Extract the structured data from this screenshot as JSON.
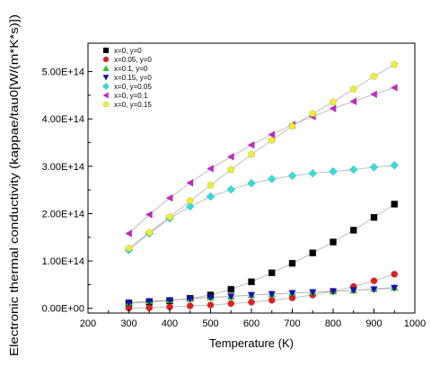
{
  "chart_data": {
    "type": "scatter",
    "title": "",
    "xlabel": "Temperature (K)",
    "ylabel": "Electronic thermal conductivity (kappae/tau0[W/(m*K*s)])",
    "xlim": [
      200,
      1000
    ],
    "ylim": [
      -10000000000000.0,
      560000000000000.0
    ],
    "x_ticks": [
      200,
      300,
      400,
      500,
      600,
      700,
      800,
      900,
      1000
    ],
    "x_tick_labels": [
      "200",
      "300",
      "400",
      "500",
      "600",
      "700",
      "800",
      "900",
      "1000"
    ],
    "y_ticks": [
      0,
      100000000000000.0,
      200000000000000.0,
      300000000000000.0,
      400000000000000.0,
      500000000000000.0
    ],
    "y_tick_labels": [
      "0.00E+00",
      "1.00E+14",
      "2.00E+14",
      "3.00E+14",
      "4.00E+14",
      "5.00E+14"
    ],
    "grid": false,
    "legend_position": "top-left",
    "x": [
      300,
      350,
      400,
      450,
      500,
      550,
      600,
      650,
      700,
      750,
      800,
      850,
      900,
      950
    ],
    "series": [
      {
        "name": "x=0, y=0",
        "color": "#000000",
        "marker": "square",
        "values": [
          10000000000000.0,
          13000000000000.0,
          16000000000000.0,
          21000000000000.0,
          28000000000000.0,
          40000000000000.0,
          56000000000000.0,
          75000000000000.0,
          95000000000000.0,
          117000000000000.0,
          140000000000000.0,
          165000000000000.0,
          192000000000000.0,
          220000000000000.0
        ]
      },
      {
        "name": "x=0.05, y=0",
        "color": "#e02020",
        "marker": "circle",
        "values": [
          0.0,
          1000000000000.0,
          3000000000000.0,
          5000000000000.0,
          7000000000000.0,
          10000000000000.0,
          13000000000000.0,
          17000000000000.0,
          22000000000000.0,
          28000000000000.0,
          36000000000000.0,
          46000000000000.0,
          58000000000000.0,
          72000000000000.0
        ]
      },
      {
        "name": "x=0.1, y=0",
        "color": "#22cc22",
        "marker": "triangle-up",
        "values": [
          12000000000000.0,
          15000000000000.0,
          17000000000000.0,
          20000000000000.0,
          23000000000000.0,
          25000000000000.0,
          28000000000000.0,
          30000000000000.0,
          32000000000000.0,
          34000000000000.0,
          36000000000000.0,
          38000000000000.0,
          41000000000000.0,
          44000000000000.0
        ]
      },
      {
        "name": "x=0.15, y=0",
        "color": "#1010c0",
        "marker": "triangle-down",
        "values": [
          12000000000000.0,
          15000000000000.0,
          17000000000000.0,
          20000000000000.0,
          23000000000000.0,
          25000000000000.0,
          28000000000000.0,
          30000000000000.0,
          32000000000000.0,
          34000000000000.0,
          36000000000000.0,
          38000000000000.0,
          40000000000000.0,
          43000000000000.0
        ]
      },
      {
        "name": "x=0, y=0.05",
        "color": "#33dddd",
        "marker": "diamond",
        "values": [
          123000000000000.0,
          158000000000000.0,
          190000000000000.0,
          215000000000000.0,
          236000000000000.0,
          251000000000000.0,
          264000000000000.0,
          273000000000000.0,
          280000000000000.0,
          285000000000000.0,
          289000000000000.0,
          293000000000000.0,
          298000000000000.0,
          302000000000000.0
        ]
      },
      {
        "name": "x=0, y=0.1",
        "color": "#cc22cc",
        "marker": "triangle-left",
        "values": [
          158000000000000.0,
          198000000000000.0,
          233000000000000.0,
          265000000000000.0,
          295000000000000.0,
          320000000000000.0,
          345000000000000.0,
          367000000000000.0,
          388000000000000.0,
          405000000000000.0,
          422000000000000.0,
          437000000000000.0,
          452000000000000.0,
          466000000000000.0
        ]
      },
      {
        "name": "x=0, y=0.15",
        "color": "#f0ee30",
        "marker": "pentagon",
        "values": [
          127000000000000.0,
          160000000000000.0,
          193000000000000.0,
          227000000000000.0,
          260000000000000.0,
          293000000000000.0,
          325000000000000.0,
          355000000000000.0,
          385000000000000.0,
          411000000000000.0,
          436000000000000.0,
          463000000000000.0,
          490000000000000.0,
          515000000000000.0
        ]
      }
    ]
  }
}
